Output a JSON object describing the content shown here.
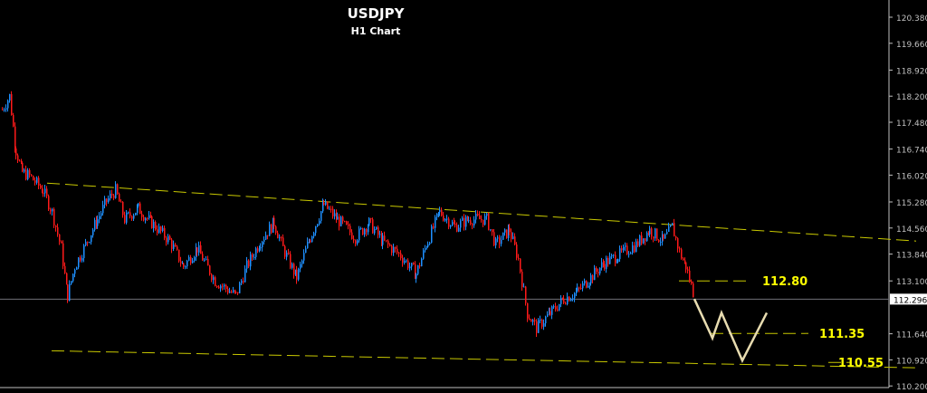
{
  "chart_data": {
    "type": "candlestick",
    "title": "USDJPY",
    "subtitle": "H1 Chart",
    "ylim": [
      110.2,
      120.38
    ],
    "y_ticks": [
      "120.380",
      "119.660",
      "118.920",
      "118.200",
      "117.480",
      "116.740",
      "116.020",
      "115.280",
      "114.560",
      "113.840",
      "113.100",
      "111.640",
      "110.920",
      "110.200"
    ],
    "current_price": "112.296",
    "price_path": [
      [
        0,
        117.53
      ],
      [
        8,
        117.9
      ],
      [
        15,
        116.4
      ],
      [
        22,
        115.8
      ],
      [
        30,
        115.7
      ],
      [
        45,
        115.3
      ],
      [
        55,
        114.7
      ],
      [
        65,
        113.7
      ],
      [
        72,
        112.4
      ],
      [
        80,
        113.2
      ],
      [
        90,
        113.7
      ],
      [
        105,
        114.5
      ],
      [
        115,
        115.0
      ],
      [
        125,
        115.3
      ],
      [
        135,
        114.5
      ],
      [
        150,
        114.8
      ],
      [
        165,
        114.4
      ],
      [
        185,
        113.9
      ],
      [
        200,
        113.2
      ],
      [
        215,
        113.7
      ],
      [
        235,
        112.8
      ],
      [
        258,
        112.4
      ],
      [
        270,
        113.2
      ],
      [
        285,
        113.9
      ],
      [
        300,
        114.4
      ],
      [
        310,
        113.7
      ],
      [
        325,
        112.9
      ],
      [
        340,
        114.0
      ],
      [
        355,
        114.9
      ],
      [
        370,
        114.5
      ],
      [
        390,
        114.0
      ],
      [
        405,
        114.4
      ],
      [
        420,
        113.9
      ],
      [
        440,
        113.5
      ],
      [
        457,
        113.0
      ],
      [
        470,
        113.9
      ],
      [
        483,
        114.7
      ],
      [
        500,
        114.3
      ],
      [
        515,
        114.5
      ],
      [
        535,
        114.5
      ],
      [
        545,
        113.8
      ],
      [
        560,
        114.2
      ],
      [
        570,
        113.4
      ],
      [
        580,
        111.9
      ],
      [
        590,
        111.5
      ],
      [
        605,
        111.9
      ],
      [
        620,
        112.3
      ],
      [
        635,
        112.5
      ],
      [
        650,
        112.9
      ],
      [
        665,
        113.3
      ],
      [
        680,
        113.5
      ],
      [
        700,
        113.8
      ],
      [
        715,
        114.2
      ],
      [
        730,
        113.9
      ],
      [
        740,
        114.3
      ],
      [
        748,
        113.6
      ],
      [
        755,
        113.2
      ],
      [
        765,
        112.3
      ]
    ],
    "trendlines": [
      {
        "from": [
          50,
          115.5
        ],
        "to": [
          1010,
          113.9
        ]
      },
      {
        "from": [
          55,
          110.87
        ],
        "to": [
          1010,
          110.4
        ]
      }
    ],
    "levels": [
      {
        "label": "112.80",
        "price": 112.8,
        "from": 750,
        "to": 830
      },
      {
        "label": "111.35",
        "price": 111.35,
        "from": 785,
        "to": 893
      },
      {
        "label": "110.55",
        "price": 110.55,
        "from": 915,
        "to": 940
      }
    ],
    "projection": [
      [
        765,
        112.3
      ],
      [
        785,
        111.22
      ],
      [
        795,
        111.92
      ],
      [
        818,
        110.6
      ],
      [
        845,
        111.92
      ]
    ],
    "colors": {
      "up": "#1e90ff",
      "down": "#ff1a1a",
      "trend": "#c8c800",
      "level_label": "#ffff00",
      "projection": "#e8dcb0",
      "axis": "#c0c0c0"
    }
  }
}
